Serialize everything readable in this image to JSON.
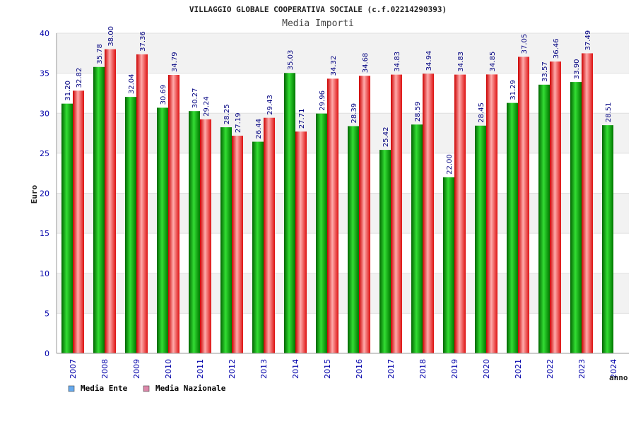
{
  "chart_data": {
    "type": "bar",
    "title": "VILLAGGIO GLOBALE COOPERATIVA SOCIALE (c.f.02214290393)",
    "subtitle": "Media Importi",
    "xlabel": "anno",
    "ylabel": "Euro",
    "ylim": [
      0,
      40
    ],
    "yticks": [
      0,
      5,
      10,
      15,
      20,
      25,
      30,
      35,
      40
    ],
    "categories": [
      "2007",
      "2008",
      "2009",
      "2010",
      "2011",
      "2012",
      "2013",
      "2014",
      "2015",
      "2016",
      "2017",
      "2018",
      "2019",
      "2020",
      "2021",
      "2022",
      "2023",
      "2024"
    ],
    "series": [
      {
        "name": "Media Ente",
        "color": "#00aa00",
        "legend_color": "#66aaee",
        "values": [
          31.2,
          35.78,
          32.04,
          30.69,
          30.27,
          28.25,
          26.44,
          35.03,
          29.96,
          28.39,
          25.42,
          28.59,
          22.0,
          28.45,
          31.29,
          33.57,
          33.9,
          28.51
        ],
        "labels": [
          "31.20",
          "35.78",
          "32.04",
          "30.69",
          "30.27",
          "28.25",
          "26.44",
          "35.03",
          "29.96",
          "28.39",
          "25.42",
          "28.59",
          "22.00",
          "28.45",
          "31.29",
          "33.57",
          "33.90",
          "28.51"
        ]
      },
      {
        "name": "Media Nazionale",
        "color": "#ee2222",
        "legend_color": "#dd88aa",
        "values": [
          32.82,
          38.0,
          37.36,
          34.79,
          29.24,
          27.19,
          29.43,
          27.71,
          34.32,
          34.68,
          34.83,
          34.94,
          34.83,
          34.85,
          37.05,
          36.46,
          37.49,
          null
        ],
        "labels": [
          "32.82",
          "38.00",
          "37.36",
          "34.79",
          "29.24",
          "27.19",
          "29.43",
          "27.71",
          "34.32",
          "34.68",
          "34.83",
          "34.94",
          "34.83",
          "34.85",
          "37.05",
          "36.46",
          "37.49",
          ""
        ]
      }
    ],
    "grid": true,
    "legend_position": "bottom-left"
  }
}
